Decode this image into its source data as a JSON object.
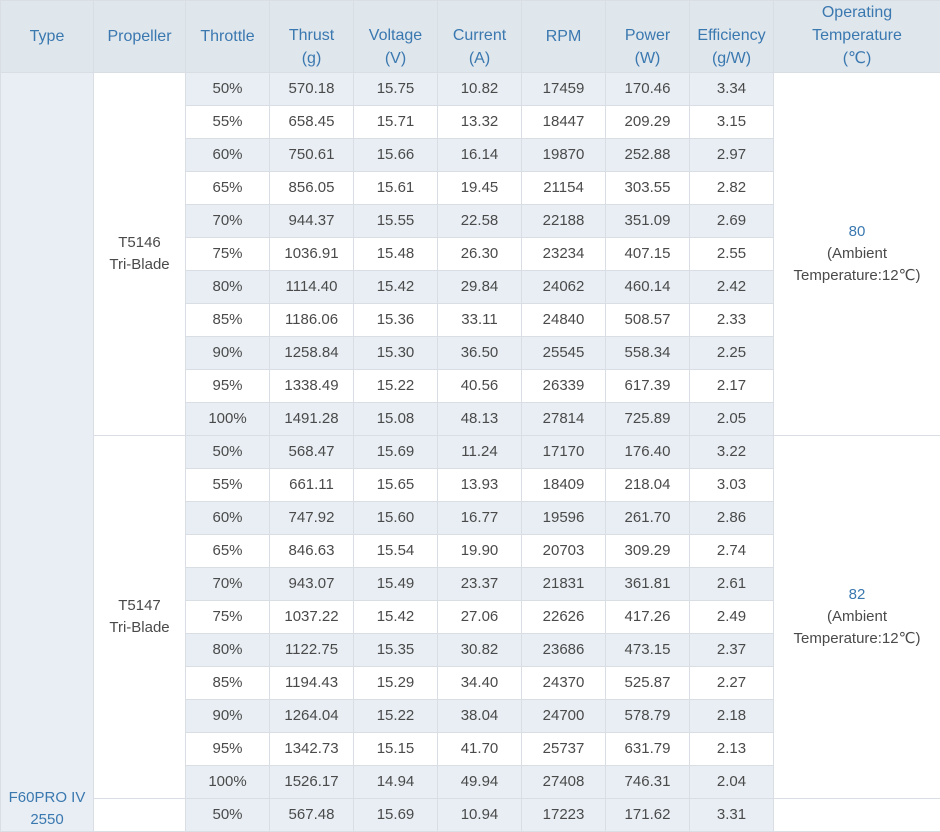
{
  "headers": {
    "type": "Type",
    "propeller": "Propeller",
    "throttle": "Throttle",
    "thrust": [
      "Thrust",
      "(g)"
    ],
    "voltage": [
      "Voltage",
      "(V)"
    ],
    "current": [
      "Current",
      "(A)"
    ],
    "rpm": "RPM",
    "power": [
      "Power",
      "(W)"
    ],
    "efficiency": [
      "Efficiency",
      "(g/W)"
    ],
    "temperature": [
      "Operating",
      "Temperature",
      "(℃)"
    ]
  },
  "type_label": [
    "F60PRO IV",
    "2550"
  ],
  "groups": [
    {
      "propeller": [
        "T5146",
        "Tri-Blade"
      ],
      "temperature": {
        "value": "80",
        "note_line1": "(Ambient",
        "note_line2": "Temperature:12℃)"
      },
      "rows": [
        [
          "50%",
          "570.18",
          "15.75",
          "10.82",
          "17459",
          "170.46",
          "3.34"
        ],
        [
          "55%",
          "658.45",
          "15.71",
          "13.32",
          "18447",
          "209.29",
          "3.15"
        ],
        [
          "60%",
          "750.61",
          "15.66",
          "16.14",
          "19870",
          "252.88",
          "2.97"
        ],
        [
          "65%",
          "856.05",
          "15.61",
          "19.45",
          "21154",
          "303.55",
          "2.82"
        ],
        [
          "70%",
          "944.37",
          "15.55",
          "22.58",
          "22188",
          "351.09",
          "2.69"
        ],
        [
          "75%",
          "1036.91",
          "15.48",
          "26.30",
          "23234",
          "407.15",
          "2.55"
        ],
        [
          "80%",
          "1114.40",
          "15.42",
          "29.84",
          "24062",
          "460.14",
          "2.42"
        ],
        [
          "85%",
          "1186.06",
          "15.36",
          "33.11",
          "24840",
          "508.57",
          "2.33"
        ],
        [
          "90%",
          "1258.84",
          "15.30",
          "36.50",
          "25545",
          "558.34",
          "2.25"
        ],
        [
          "95%",
          "1338.49",
          "15.22",
          "40.56",
          "26339",
          "617.39",
          "2.17"
        ],
        [
          "100%",
          "1491.28",
          "15.08",
          "48.13",
          "27814",
          "725.89",
          "2.05"
        ]
      ]
    },
    {
      "propeller": [
        "T5147",
        "Tri-Blade"
      ],
      "temperature": {
        "value": "82",
        "note_line1": "(Ambient",
        "note_line2": "Temperature:12℃)"
      },
      "rows": [
        [
          "50%",
          "568.47",
          "15.69",
          "11.24",
          "17170",
          "176.40",
          "3.22"
        ],
        [
          "55%",
          "661.11",
          "15.65",
          "13.93",
          "18409",
          "218.04",
          "3.03"
        ],
        [
          "60%",
          "747.92",
          "15.60",
          "16.77",
          "19596",
          "261.70",
          "2.86"
        ],
        [
          "65%",
          "846.63",
          "15.54",
          "19.90",
          "20703",
          "309.29",
          "2.74"
        ],
        [
          "70%",
          "943.07",
          "15.49",
          "23.37",
          "21831",
          "361.81",
          "2.61"
        ],
        [
          "75%",
          "1037.22",
          "15.42",
          "27.06",
          "22626",
          "417.26",
          "2.49"
        ],
        [
          "80%",
          "1122.75",
          "15.35",
          "30.82",
          "23686",
          "473.15",
          "2.37"
        ],
        [
          "85%",
          "1194.43",
          "15.29",
          "34.40",
          "24370",
          "525.87",
          "2.27"
        ],
        [
          "90%",
          "1264.04",
          "15.22",
          "38.04",
          "24700",
          "578.79",
          "2.18"
        ],
        [
          "95%",
          "1342.73",
          "15.15",
          "41.70",
          "25737",
          "631.79",
          "2.13"
        ],
        [
          "100%",
          "1526.17",
          "14.94",
          "49.94",
          "27408",
          "746.31",
          "2.04"
        ]
      ]
    },
    {
      "propeller": [],
      "temperature": null,
      "rows": [
        [
          "50%",
          "567.48",
          "15.69",
          "10.94",
          "17223",
          "171.62",
          "3.31"
        ]
      ]
    }
  ],
  "colors": {
    "header_bg": "#dfe6ec",
    "header_text": "#3a78b0",
    "stripe": "#e8eef3",
    "border": "#d8dee4"
  }
}
